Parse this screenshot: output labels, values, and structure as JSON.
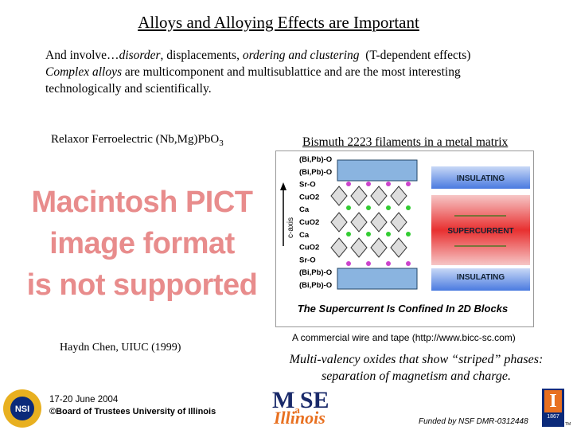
{
  "title": "Alloys and Alloying Effects are Important",
  "intro": {
    "line1": [
      "And involve…",
      "disorder",
      ", displacements, ",
      "ordering and clustering",
      "  (T-dependent effects)"
    ],
    "line2": [
      "Complex alloys",
      " are multicomponent and multisublattice and are the most interesting"
    ],
    "line3": "technologically and scientifically."
  },
  "left": {
    "caption": {
      "text": "Relaxor Ferroelectric (Nb,Mg)PbO",
      "sub": "3"
    },
    "placeholder": [
      "Macintosh PICT",
      "image format",
      "is not supported"
    ],
    "credit": "Haydn Chen, UIUC (1999)"
  },
  "right": {
    "caption": "Bismuth 2223 filaments in a metal matrix",
    "diagram": {
      "layers": [
        "(Bi,Pb)-O",
        "(Bi,Pb)-O",
        "Sr-O",
        "CuO2",
        "Ca",
        "CuO2",
        "Ca",
        "CuO2",
        "Sr-O",
        "(Bi,Pb)-O",
        "(Bi,Pb)-O"
      ],
      "axis": "c-axis",
      "bands": [
        "INSULATING",
        "SUPERCURRENT",
        "INSULATING"
      ],
      "footer": "The Supercurrent Is Confined In 2D Blocks"
    },
    "source": "A commercial wire and tape  (http://www.bicc-sc.com)",
    "note": [
      "Multi-valency oxides that show “striped” phases:",
      "separation of magnetism and charge."
    ]
  },
  "footer": {
    "nsi": "NSI",
    "date": "17-20 June 2004",
    "copyright": "©Board of Trustees University of Illinois",
    "mse": [
      "M",
      "a",
      "S",
      "E"
    ],
    "illinois": "Illinois",
    "funding": "Funded by NSF DMR-0312448",
    "uiuc": [
      "I",
      "1867"
    ],
    "tm": "TM"
  }
}
